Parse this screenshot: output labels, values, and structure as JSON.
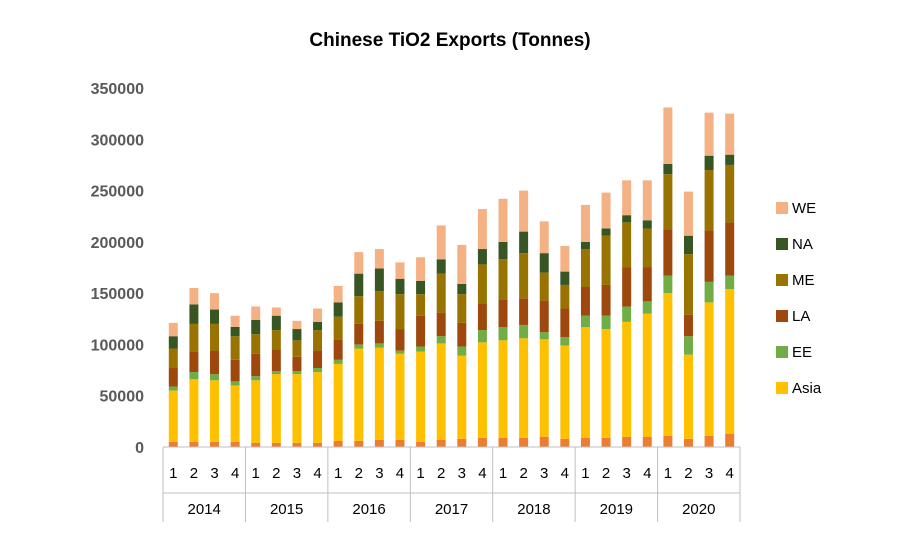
{
  "chart_data": {
    "type": "bar",
    "stacked": true,
    "title": "Chinese TiO2 Exports (Tonnes)",
    "xlabel": "",
    "ylabel": "",
    "ylim": [
      0,
      350000
    ],
    "yticks": [
      "0",
      "50000",
      "100000",
      "150000",
      "200000",
      "250000",
      "300000",
      "350000"
    ],
    "grid": false,
    "legend_position": "right",
    "years": [
      "2014",
      "2015",
      "2016",
      "2017",
      "2018",
      "2019",
      "2020"
    ],
    "categories": [
      "1",
      "2",
      "3",
      "4",
      "1",
      "2",
      "3",
      "4",
      "1",
      "2",
      "3",
      "4",
      "1",
      "2",
      "3",
      "4",
      "1",
      "2",
      "3",
      "4",
      "1",
      "2",
      "3",
      "4",
      "1",
      "2",
      "3",
      "4"
    ],
    "base": {
      "color": "#ed7d31",
      "values": [
        5000,
        5000,
        5000,
        5000,
        4000,
        4000,
        4000,
        4000,
        6000,
        6000,
        7000,
        7000,
        5000,
        7000,
        8000,
        9000,
        9000,
        9000,
        10000,
        8000,
        9000,
        9000,
        10000,
        10000,
        11000,
        8000,
        11000,
        13000
      ]
    },
    "series": [
      {
        "name": "Asia",
        "color": "#ffc000",
        "values": [
          50000,
          61000,
          60000,
          55000,
          61000,
          67000,
          67000,
          69000,
          75000,
          90000,
          90000,
          84000,
          88000,
          94000,
          81000,
          93000,
          95000,
          97000,
          95000,
          91000,
          108000,
          106000,
          112000,
          120000,
          139000,
          82000,
          130000,
          141000
        ]
      },
      {
        "name": "EE",
        "color": "#70ad47",
        "values": [
          4000,
          7000,
          6000,
          4000,
          4000,
          3000,
          3000,
          4000,
          4000,
          4000,
          4000,
          3000,
          5000,
          7000,
          9000,
          12000,
          13000,
          13000,
          7000,
          8000,
          11000,
          13000,
          15000,
          12000,
          17000,
          18000,
          20000,
          13000
        ]
      },
      {
        "name": "LA",
        "color": "#9e480e",
        "values": [
          18000,
          20000,
          23000,
          21000,
          22000,
          21000,
          14000,
          17000,
          20000,
          20000,
          22000,
          21000,
          30000,
          23000,
          23000,
          26000,
          27000,
          26000,
          31000,
          28000,
          28000,
          30000,
          38000,
          33000,
          45000,
          21000,
          50000,
          52000
        ]
      },
      {
        "name": "ME",
        "color": "#997300",
        "values": [
          19000,
          27000,
          26000,
          23000,
          19000,
          19000,
          16000,
          20000,
          22000,
          27000,
          29000,
          34000,
          21000,
          38000,
          28000,
          38000,
          39000,
          44000,
          27000,
          23000,
          37000,
          48000,
          44000,
          38000,
          54000,
          59000,
          59000,
          56000
        ]
      },
      {
        "name": "NA",
        "color": "#375623",
        "values": [
          12000,
          19000,
          14000,
          9000,
          14000,
          14000,
          11000,
          8000,
          14000,
          22000,
          22000,
          15000,
          13000,
          14000,
          10000,
          15000,
          17000,
          21000,
          19000,
          13000,
          7000,
          7000,
          7000,
          8000,
          10000,
          18000,
          14000,
          10000
        ]
      },
      {
        "name": "WE",
        "color": "#f4b183",
        "values": [
          13000,
          16000,
          16000,
          11000,
          13000,
          8000,
          8000,
          13000,
          16000,
          21000,
          19000,
          16000,
          23000,
          33000,
          38000,
          39000,
          42000,
          40000,
          31000,
          25000,
          36000,
          35000,
          34000,
          39000,
          55000,
          43000,
          42000,
          40000
        ]
      }
    ],
    "legend": [
      "WE",
      "NA",
      "ME",
      "LA",
      "EE",
      "Asia"
    ]
  }
}
